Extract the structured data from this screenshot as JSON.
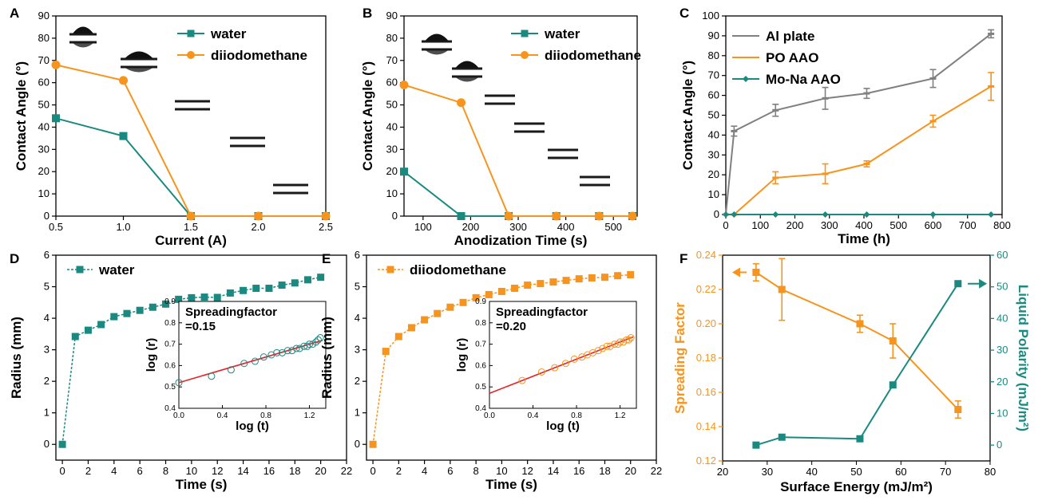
{
  "colors": {
    "orange": "#f7941d",
    "teal": "#1a8a80",
    "gray": "#808080",
    "red": "#e8202a",
    "black": "#000000"
  },
  "chart_data": [
    {
      "id": "A",
      "type": "line",
      "panel": "A",
      "xlabel": "Current (A)",
      "ylabel": "Contact Angle (°)",
      "xlim": [
        0.5,
        2.5
      ],
      "ylim": [
        0,
        90
      ],
      "xticks": [
        "0.5",
        "1.0",
        "1.5",
        "2.0",
        "2.5"
      ],
      "yticks": [
        "0",
        "10",
        "20",
        "30",
        "40",
        "50",
        "60",
        "70",
        "80",
        "90"
      ],
      "legend_position": "top-right",
      "series": [
        {
          "name": "water",
          "marker": "square",
          "color": "#1a8a80",
          "x": [
            0.5,
            1.0,
            1.5,
            2.0,
            2.5
          ],
          "y": [
            44,
            36,
            0,
            0,
            0
          ]
        },
        {
          "name": "diiodomethane",
          "marker": "circle",
          "color": "#f7941d",
          "x": [
            0.5,
            1.0,
            1.5,
            2.0,
            2.5
          ],
          "y": [
            68,
            61,
            0,
            0,
            0
          ]
        }
      ],
      "droplet_images": [
        "droplet-image",
        "droplet-image",
        "droplet-image",
        "droplet-image",
        "droplet-image"
      ]
    },
    {
      "id": "B",
      "type": "line",
      "panel": "B",
      "xlabel": "Anodization Time (s)",
      "ylabel": "Contact Angle (°)",
      "xlim": [
        60,
        550
      ],
      "ylim": [
        0,
        90
      ],
      "xticks": [
        "100",
        "200",
        "300",
        "400",
        "500"
      ],
      "yticks": [
        "0",
        "10",
        "20",
        "30",
        "40",
        "50",
        "60",
        "70",
        "80",
        "90"
      ],
      "legend_position": "top-right",
      "series": [
        {
          "name": "water",
          "marker": "square",
          "color": "#1a8a80",
          "x": [
            60,
            180,
            280,
            380,
            470,
            540
          ],
          "y": [
            20,
            0,
            0,
            0,
            0,
            0
          ]
        },
        {
          "name": "diiodomethane",
          "marker": "circle",
          "color": "#f7941d",
          "x": [
            60,
            180,
            280,
            380,
            470,
            540
          ],
          "y": [
            59,
            51,
            0,
            0,
            0,
            0
          ]
        }
      ],
      "droplet_images": [
        "droplet-image",
        "droplet-image",
        "droplet-image",
        "droplet-image",
        "droplet-image",
        "droplet-image"
      ]
    },
    {
      "id": "C",
      "type": "line",
      "panel": "C",
      "xlabel": "Time (h)",
      "ylabel": "Contact Angle (°)",
      "xlim": [
        0,
        800
      ],
      "ylim": [
        0,
        100
      ],
      "xticks": [
        "0",
        "100",
        "200",
        "300",
        "400",
        "500",
        "600",
        "700",
        "800"
      ],
      "yticks": [
        "0",
        "10",
        "20",
        "30",
        "40",
        "50",
        "60",
        "70",
        "80",
        "90",
        "100"
      ],
      "legend_position": "top-left",
      "series": [
        {
          "name": "Al plate",
          "marker": "dash",
          "color": "#808080",
          "x": [
            0,
            24,
            144,
            288,
            408,
            600,
            768
          ],
          "y": [
            0,
            42,
            52.5,
            58.5,
            61,
            68.5,
            91
          ],
          "err": [
            0,
            2.5,
            3,
            5.5,
            2.5,
            4.5,
            2
          ]
        },
        {
          "name": "PO AAO",
          "marker": "dash",
          "color": "#f7941d",
          "x": [
            0,
            24,
            144,
            288,
            408,
            600,
            768
          ],
          "y": [
            0,
            0,
            18.5,
            20.5,
            25.5,
            47,
            64.5
          ],
          "err": [
            0,
            0,
            3,
            5,
            1.5,
            3,
            7
          ]
        },
        {
          "name": "Mo-Na AAO",
          "marker": "diamond",
          "color": "#1a8a80",
          "x": [
            0,
            24,
            144,
            288,
            408,
            600,
            768
          ],
          "y": [
            0,
            0,
            0,
            0,
            0,
            0,
            0
          ],
          "err": [
            0,
            0,
            0,
            0,
            0,
            0,
            0
          ]
        }
      ]
    },
    {
      "id": "D",
      "type": "line",
      "panel": "D",
      "xlabel": "Time (s)",
      "ylabel": "Radius (mm)",
      "xlim": [
        -0.5,
        22
      ],
      "ylim": [
        -0.5,
        6
      ],
      "xticks": [
        "0",
        "2",
        "4",
        "6",
        "8",
        "10",
        "12",
        "14",
        "16",
        "18",
        "20",
        "22"
      ],
      "yticks": [
        "0",
        "1",
        "2",
        "3",
        "4",
        "5",
        "6"
      ],
      "legend_position": "top-left",
      "series": [
        {
          "name": "water",
          "marker": "square",
          "color": "#1a8a80",
          "x": [
            0,
            1,
            2,
            3,
            4,
            5,
            6,
            7,
            8,
            9,
            10,
            11,
            12,
            13,
            14,
            15,
            16,
            17,
            18,
            19,
            20
          ],
          "y": [
            0,
            3.42,
            3.62,
            3.8,
            4.05,
            4.15,
            4.25,
            4.35,
            4.45,
            4.6,
            4.65,
            4.67,
            4.66,
            4.8,
            4.88,
            4.95,
            4.95,
            5.05,
            5.12,
            5.22,
            5.3
          ]
        }
      ],
      "inset": {
        "xlabel": "log (t)",
        "ylabel": "log (r)",
        "xlim": [
          0,
          1.35
        ],
        "ylim": [
          0.4,
          0.9
        ],
        "xticks": [
          "0.0",
          "0.4",
          "0.8",
          "1.2"
        ],
        "yticks": [
          "0.4",
          "0.5",
          "0.6",
          "0.7",
          "0.8",
          "0.9"
        ],
        "annotation_line1": "Spreadingfactor",
        "annotation_line2": "=0.15",
        "fit": {
          "intercept": 0.52,
          "slope": 0.15
        },
        "points_x": [
          0.0,
          0.3,
          0.48,
          0.6,
          0.7,
          0.78,
          0.85,
          0.9,
          0.95,
          1.0,
          1.04,
          1.08,
          1.11,
          1.15,
          1.18,
          1.2,
          1.23,
          1.26,
          1.28,
          1.3
        ],
        "points_y": [
          0.52,
          0.55,
          0.58,
          0.61,
          0.62,
          0.64,
          0.65,
          0.66,
          0.66,
          0.67,
          0.67,
          0.68,
          0.68,
          0.69,
          0.69,
          0.7,
          0.7,
          0.71,
          0.72,
          0.73
        ]
      }
    },
    {
      "id": "E",
      "type": "line",
      "panel": "E",
      "xlabel": "Time (s)",
      "ylabel": "Radius (mm)",
      "xlim": [
        -0.5,
        22
      ],
      "ylim": [
        -0.5,
        6
      ],
      "xticks": [
        "0",
        "2",
        "4",
        "6",
        "8",
        "10",
        "12",
        "14",
        "16",
        "18",
        "20",
        "22"
      ],
      "yticks": [
        "0",
        "1",
        "2",
        "3",
        "4",
        "5",
        "6"
      ],
      "legend_position": "top-left",
      "series": [
        {
          "name": "diiodomethane",
          "marker": "square",
          "color": "#f7941d",
          "x": [
            0,
            1,
            2,
            3,
            4,
            5,
            6,
            7,
            8,
            9,
            10,
            11,
            12,
            13,
            14,
            15,
            16,
            17,
            18,
            19,
            20
          ],
          "y": [
            0,
            2.95,
            3.42,
            3.7,
            3.95,
            4.15,
            4.35,
            4.5,
            4.65,
            4.75,
            4.85,
            4.95,
            5.05,
            5.1,
            5.15,
            5.2,
            5.25,
            5.28,
            5.3,
            5.35,
            5.38
          ]
        }
      ],
      "inset": {
        "xlabel": "log (t)",
        "ylabel": "log (r)",
        "xlim": [
          0,
          1.35
        ],
        "ylim": [
          0.4,
          0.9
        ],
        "xticks": [
          "0.0",
          "0.4",
          "0.8",
          "1.2"
        ],
        "yticks": [
          "0.4",
          "0.5",
          "0.6",
          "0.7",
          "0.8",
          "0.9"
        ],
        "annotation_line1": "Spreadingfactor",
        "annotation_line2": "=0.20",
        "fit": {
          "intercept": 0.47,
          "slope": 0.2
        },
        "points_x": [
          0.3,
          0.48,
          0.6,
          0.7,
          0.78,
          0.85,
          0.9,
          0.95,
          1.0,
          1.04,
          1.08,
          1.11,
          1.15,
          1.18,
          1.2,
          1.23,
          1.26,
          1.28,
          1.3
        ],
        "points_y": [
          0.53,
          0.57,
          0.59,
          0.61,
          0.63,
          0.64,
          0.65,
          0.66,
          0.67,
          0.68,
          0.69,
          0.69,
          0.7,
          0.7,
          0.71,
          0.71,
          0.72,
          0.72,
          0.73
        ]
      }
    },
    {
      "id": "F",
      "type": "line",
      "panel": "F",
      "xlabel": "Surface Energy (mJ/m²)",
      "ylabel": "Spreading Factor",
      "ylabel_right": "Liquid Polarity (mJ/m²)",
      "xlim": [
        20,
        80
      ],
      "ylim": [
        0.12,
        0.24
      ],
      "ylim_right": [
        -5,
        60
      ],
      "xticks": [
        "20",
        "30",
        "40",
        "50",
        "60",
        "70",
        "80"
      ],
      "yticks": [
        "0.12",
        "0.14",
        "0.16",
        "0.18",
        "0.20",
        "0.22",
        "0.24"
      ],
      "yticks_right": [
        "0",
        "10",
        "20",
        "30",
        "40",
        "50",
        "60"
      ],
      "series": [
        {
          "name": "Spreading Factor",
          "axis": "left",
          "marker": "square",
          "color": "#f7941d",
          "x": [
            27.5,
            33.3,
            50.8,
            58.2,
            72.8
          ],
          "y": [
            0.23,
            0.22,
            0.2,
            0.19,
            0.15
          ],
          "err": [
            0.005,
            0.018,
            0.005,
            0.01,
            0.005
          ]
        },
        {
          "name": "Liquid Polarity",
          "axis": "right",
          "marker": "square",
          "color": "#1a8a80",
          "x": [
            27.5,
            33.3,
            50.8,
            58.2,
            72.8
          ],
          "y": [
            0,
            2.5,
            2,
            19,
            51
          ]
        }
      ]
    }
  ]
}
